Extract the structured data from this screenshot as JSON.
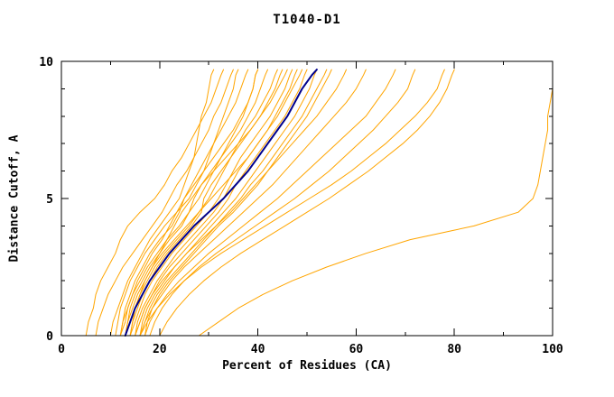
{
  "chart_data": {
    "type": "line",
    "title": "T1040-D1",
    "xlabel": "Percent of Residues (CA)",
    "ylabel": "Distance Cutoff, A",
    "xlim": [
      0,
      100
    ],
    "ylim": [
      0,
      10
    ],
    "x_major_ticks": [
      0,
      20,
      40,
      60,
      80,
      100
    ],
    "x_minor_ticks": [
      10,
      30,
      50,
      70,
      90
    ],
    "y_major_ticks": [
      0,
      5,
      10
    ],
    "y_minor_ticks": [
      1,
      2,
      3,
      4,
      6,
      7,
      8,
      9
    ],
    "grid": false,
    "legend": "none",
    "colors": {
      "prediction": "#FFA500",
      "highlight": "#00008B",
      "axis": "#000000"
    },
    "y_values": [
      0,
      0.5,
      1,
      1.5,
      2,
      2.5,
      3,
      3.5,
      4,
      4.5,
      5,
      5.5,
      6,
      6.5,
      7,
      7.5,
      8,
      8.5,
      9,
      9.5,
      9.7
    ],
    "series": [
      {
        "x": [
          5,
          5.5,
          6.5,
          7,
          8,
          9.5,
          11,
          12,
          13.5,
          16,
          19,
          21,
          22.5,
          24.5,
          26,
          27.5,
          29,
          30.5,
          31.5,
          32.5,
          33
        ]
      },
      {
        "x": [
          7,
          7.5,
          8.5,
          9.5,
          11,
          12.5,
          14.5,
          16.5,
          18.5,
          20.5,
          22,
          23.5,
          25.5,
          27,
          28.5,
          30,
          31,
          32.5,
          33.5,
          34.5,
          35
        ]
      },
      {
        "x": [
          10,
          10.5,
          11.5,
          12.5,
          13.5,
          15,
          16.5,
          18,
          20,
          22,
          24,
          25,
          26,
          27,
          27.5,
          28,
          28.5,
          29.5,
          30,
          30.5,
          31
        ]
      },
      {
        "x": [
          11,
          11.5,
          12,
          13,
          14,
          15.5,
          17,
          19,
          21,
          23.5,
          26,
          27.5,
          29,
          30,
          31,
          32,
          33,
          34,
          35,
          35.5,
          36
        ]
      },
      {
        "x": [
          12,
          12.5,
          13,
          14,
          15,
          16.5,
          18,
          20,
          22.5,
          24,
          25,
          26.5,
          28,
          29.5,
          31,
          32.5,
          34,
          35.5,
          36.5,
          37.5,
          38
        ]
      },
      {
        "x": [
          12,
          13,
          13.5,
          14.5,
          16,
          17.5,
          19.5,
          21.5,
          24,
          26,
          28,
          29.5,
          31,
          32.5,
          34,
          35.5,
          37,
          38,
          39,
          39.5,
          40
        ]
      },
      {
        "x": [
          13,
          13.5,
          14,
          15,
          16.5,
          18,
          20,
          22,
          24.5,
          26,
          27,
          28.5,
          30.5,
          32.5,
          34.5,
          36.5,
          38,
          39.5,
          40.5,
          41.5,
          42
        ]
      },
      {
        "x": [
          13,
          14,
          15,
          16,
          17,
          18.5,
          20.5,
          23,
          25.5,
          28,
          30,
          31.5,
          33,
          34.5,
          36,
          37.5,
          39.5,
          41,
          42.5,
          43.5,
          44
        ]
      },
      {
        "x": [
          14,
          14.5,
          15.5,
          16.5,
          18,
          19.5,
          21.5,
          24,
          26.5,
          28.5,
          29,
          30.5,
          32.5,
          34.5,
          36.5,
          38.5,
          40.5,
          42,
          43.5,
          44.5,
          45
        ]
      },
      {
        "x": [
          14,
          15,
          16,
          17,
          18.5,
          20.5,
          22.5,
          25,
          27.5,
          30,
          32,
          33.5,
          35,
          36.5,
          38.5,
          40.5,
          42.5,
          44,
          45.5,
          46.5,
          47
        ]
      },
      {
        "x": [
          15,
          15.5,
          16.5,
          18,
          19.5,
          21.5,
          23.5,
          26,
          28.5,
          31,
          33,
          34.5,
          36,
          38,
          40,
          42,
          43.5,
          45,
          46.5,
          47.5,
          48
        ]
      },
      {
        "x": [
          15,
          16,
          17,
          18.5,
          20,
          22,
          24.5,
          27,
          29.5,
          32,
          34,
          35.5,
          37.5,
          39.5,
          41.5,
          43.5,
          45.5,
          47,
          48.5,
          49.5,
          50
        ]
      },
      {
        "x": [
          16,
          16.5,
          17.5,
          19,
          21,
          23,
          25.5,
          28,
          30.5,
          33,
          35.5,
          37.5,
          39.5,
          41.5,
          43.5,
          45.5,
          47.5,
          49,
          50.5,
          51.5,
          52
        ]
      },
      {
        "x": [
          16,
          17,
          18,
          19.5,
          21.5,
          24,
          26.5,
          29,
          31.5,
          34,
          36.5,
          38.5,
          41,
          43,
          45,
          47,
          49,
          50.5,
          52,
          53.5,
          54
        ]
      },
      {
        "x": [
          17,
          17.5,
          18.5,
          20,
          22,
          24.5,
          27,
          29.5,
          32,
          35,
          37.5,
          40,
          42,
          44,
          46,
          48,
          50,
          51.5,
          53,
          54.5,
          55
        ]
      },
      {
        "x": [
          13,
          13.5,
          14.5,
          15.5,
          17,
          18.5,
          20,
          21.5,
          23,
          24.5,
          26.5,
          28.5,
          31,
          33.5,
          36,
          38.5,
          40.5,
          42.5,
          44,
          45.5,
          46
        ]
      },
      {
        "x": [
          12,
          12.5,
          13.5,
          14.5,
          15.5,
          17,
          18.5,
          20.5,
          22,
          23.5,
          25,
          27,
          29,
          31,
          33,
          35,
          36.5,
          38,
          39,
          39.5,
          40
        ]
      },
      {
        "x": [
          14,
          14.5,
          15,
          16,
          17.5,
          19,
          21,
          23.5,
          26,
          28,
          30.5,
          33,
          35.5,
          38,
          40,
          42,
          44,
          45.5,
          47,
          48.5,
          49
        ]
      },
      {
        "x": [
          15,
          16,
          17,
          18.5,
          20.5,
          23,
          25.5,
          28.5,
          31.5,
          34.5,
          37,
          39.5,
          42,
          44.5,
          47,
          49.5,
          52,
          54,
          56,
          57.5,
          58
        ]
      },
      {
        "x": [
          16,
          17,
          18.5,
          20.5,
          22.5,
          25,
          28,
          31,
          34,
          37,
          40,
          43,
          45.5,
          48,
          50.5,
          53,
          55.5,
          58,
          60,
          61.5,
          62
        ]
      },
      {
        "x": [
          17,
          18,
          19.5,
          21.5,
          24,
          27,
          30,
          33.5,
          37,
          40.5,
          44,
          47,
          50,
          53,
          56,
          59,
          62,
          64,
          66,
          67.5,
          68
        ]
      },
      {
        "x": [
          18,
          19,
          20.5,
          22.5,
          25,
          28,
          31.5,
          35.5,
          39.5,
          43.5,
          47.5,
          51,
          54.5,
          57.5,
          60.5,
          63.5,
          66,
          68.5,
          70.5,
          71.5,
          72
        ]
      },
      {
        "x": [
          16,
          17.5,
          19.5,
          22,
          25,
          28.5,
          32.5,
          37,
          41.5,
          46,
          50.5,
          55,
          59,
          62.5,
          66,
          69,
          72,
          74.5,
          76.5,
          77.5,
          78
        ]
      },
      {
        "x": [
          20,
          21.5,
          23.5,
          26,
          29,
          32.5,
          36.5,
          41,
          45.5,
          50,
          54.5,
          58.5,
          62.5,
          66,
          69.5,
          72.5,
          75,
          77,
          78.5,
          79.5,
          80
        ]
      },
      {
        "x": [
          28,
          32,
          36,
          41,
          47,
          54,
          62,
          71,
          84,
          93,
          96,
          97,
          97.5,
          98,
          98.5,
          99,
          99,
          99.5,
          100,
          100,
          100
        ]
      },
      {
        "x": [
          13,
          14,
          15,
          16.5,
          18,
          20,
          22,
          24.5,
          27,
          30,
          33,
          35.5,
          38,
          40,
          42,
          44,
          46,
          47.5,
          49,
          51,
          52
        ],
        "color": "#00008B",
        "width": 2
      }
    ]
  }
}
